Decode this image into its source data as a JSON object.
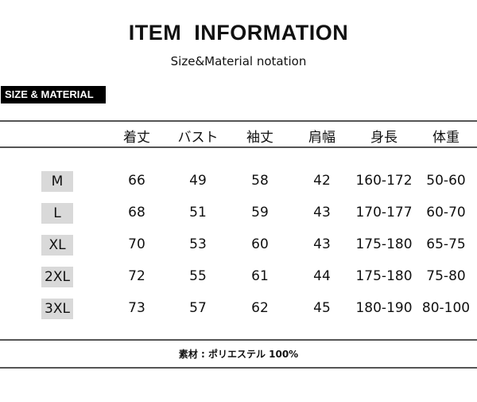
{
  "title": "ITEM  INFORMATION",
  "subtitle": "Size&Material notation",
  "badge": "SIZE & MATERIAL",
  "table": {
    "headers": [
      "着丈",
      "バスト",
      "袖丈",
      "肩幅",
      "身長",
      "体重"
    ],
    "rows": [
      {
        "size": "M",
        "values": [
          "66",
          "49",
          "58",
          "42",
          "160-172",
          "50-60"
        ]
      },
      {
        "size": "L",
        "values": [
          "68",
          "51",
          "59",
          "43",
          "170-177",
          "60-70"
        ]
      },
      {
        "size": "XL",
        "values": [
          "70",
          "53",
          "60",
          "43",
          "175-180",
          "65-75"
        ]
      },
      {
        "size": "2XL",
        "values": [
          "72",
          "55",
          "61",
          "44",
          "175-180",
          "75-80"
        ]
      },
      {
        "size": "3XL",
        "values": [
          "73",
          "57",
          "62",
          "45",
          "180-190",
          "80-100"
        ]
      }
    ]
  },
  "material": "素材 : ポリエステル 100%"
}
